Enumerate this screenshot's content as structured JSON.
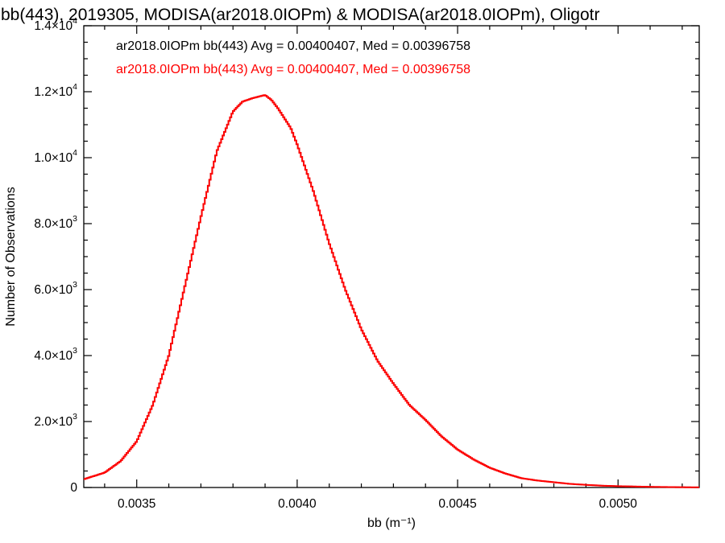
{
  "chart_data": {
    "type": "line",
    "title": "bb(443), 2019305, MODISA(ar2018.0IOPm) & MODISA(ar2018.0IOPm), Oligotr",
    "xlabel": "bb (m⁻¹)",
    "ylabel": "Number of Observations",
    "xlim": [
      0.003335,
      0.005253
    ],
    "ylim": [
      0,
      14000
    ],
    "x_ticks": [
      {
        "value": 0.0035,
        "label": "0.0035"
      },
      {
        "value": 0.004,
        "label": "0.0040"
      },
      {
        "value": 0.0045,
        "label": "0.0045"
      },
      {
        "value": 0.005,
        "label": "0.0050"
      }
    ],
    "y_ticks": [
      {
        "value": 0,
        "mantissa": "0",
        "exp": ""
      },
      {
        "value": 2000,
        "mantissa": "2.0×10",
        "exp": "3"
      },
      {
        "value": 4000,
        "mantissa": "4.0×10",
        "exp": "3"
      },
      {
        "value": 6000,
        "mantissa": "6.0×10",
        "exp": "3"
      },
      {
        "value": 8000,
        "mantissa": "8.0×10",
        "exp": "3"
      },
      {
        "value": 10000,
        "mantissa": "1.0×10",
        "exp": "4"
      },
      {
        "value": 12000,
        "mantissa": "1.2×10",
        "exp": "4"
      },
      {
        "value": 14000,
        "mantissa": "1.4×10",
        "exp": "4"
      }
    ],
    "grid": false,
    "legend_position": "top-left inside",
    "series": [
      {
        "name": "ar2018.0IOPm bb(443) Avg = 0.00400407, Med = 0.00396758",
        "color": "#000000",
        "x": [
          0.003335,
          0.0034,
          0.00345,
          0.0035,
          0.00355,
          0.0036,
          0.00365,
          0.0037,
          0.00375,
          0.0038,
          0.00383,
          0.00386,
          0.00388,
          0.0039,
          0.00392,
          0.00394,
          0.00396,
          0.00398,
          0.004,
          0.00405,
          0.0041,
          0.00415,
          0.0042,
          0.00425,
          0.0043,
          0.00435,
          0.0044,
          0.00445,
          0.0045,
          0.00455,
          0.0046,
          0.00465,
          0.0047,
          0.00475,
          0.0048,
          0.00485,
          0.0049,
          0.00495,
          0.005,
          0.0051,
          0.0052,
          0.005253
        ],
        "y": [
          250,
          450,
          800,
          1400,
          2500,
          4000,
          6100,
          8200,
          10200,
          11400,
          11700,
          11800,
          11850,
          11900,
          11750,
          11500,
          11200,
          10900,
          10400,
          9000,
          7400,
          6000,
          4800,
          3850,
          3150,
          2500,
          2050,
          1550,
          1150,
          850,
          600,
          420,
          280,
          210,
          160,
          110,
          80,
          55,
          40,
          20,
          8,
          5
        ]
      },
      {
        "name": "ar2018.0IOPm bb(443) Avg = 0.00400407, Med = 0.00396758",
        "color": "#ff0000",
        "x": [
          0.003335,
          0.0034,
          0.00345,
          0.0035,
          0.00355,
          0.0036,
          0.00365,
          0.0037,
          0.00375,
          0.0038,
          0.00383,
          0.00386,
          0.00388,
          0.0039,
          0.00392,
          0.00394,
          0.00396,
          0.00398,
          0.004,
          0.00405,
          0.0041,
          0.00415,
          0.0042,
          0.00425,
          0.0043,
          0.00435,
          0.0044,
          0.00445,
          0.0045,
          0.00455,
          0.0046,
          0.00465,
          0.0047,
          0.00475,
          0.0048,
          0.00485,
          0.0049,
          0.00495,
          0.005,
          0.0051,
          0.0052,
          0.005253
        ],
        "y": [
          250,
          450,
          800,
          1400,
          2500,
          4000,
          6100,
          8200,
          10200,
          11400,
          11700,
          11800,
          11850,
          11900,
          11750,
          11500,
          11200,
          10900,
          10400,
          9000,
          7400,
          6000,
          4800,
          3850,
          3150,
          2500,
          2050,
          1550,
          1150,
          850,
          600,
          420,
          280,
          210,
          160,
          110,
          80,
          55,
          40,
          20,
          8,
          5
        ]
      }
    ]
  }
}
